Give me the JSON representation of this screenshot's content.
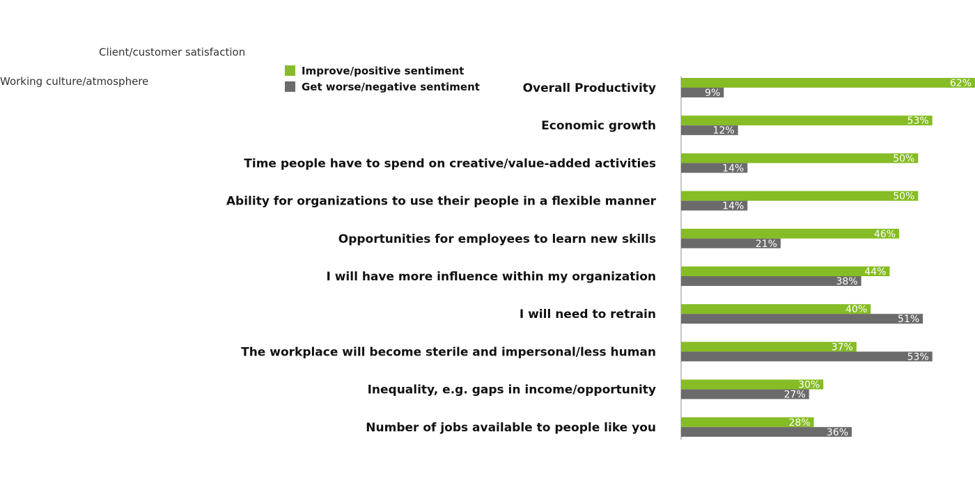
{
  "stray_labels": [
    "Client/customer satisfaction",
    "Working culture/atmosphere"
  ],
  "legend": [
    {
      "label": "Improve/positive sentiment",
      "color": "#86BC25"
    },
    {
      "label": "Get worse/negative sentiment",
      "color": "#6B6B6B"
    }
  ],
  "chart_data": {
    "type": "bar",
    "orientation": "horizontal",
    "categories": [
      "Overall Productivity",
      "Economic growth",
      "Time people have to spend on creative/value-added activities",
      "Ability for organizations to use their people in a flexible manner",
      "Opportunities for employees to learn new skills",
      "I will have more influence within my organization",
      "I will need to retrain",
      "The workplace will become sterile and impersonal/less human",
      "Inequality, e.g. gaps in income/opportunity",
      "Number of jobs available to people like you"
    ],
    "series": [
      {
        "name": "Improve/positive sentiment",
        "color": "#86BC25",
        "values": [
          62,
          53,
          50,
          50,
          46,
          44,
          40,
          37,
          30,
          28
        ]
      },
      {
        "name": "Get worse/negative sentiment",
        "color": "#6B6B6B",
        "values": [
          9,
          12,
          14,
          14,
          21,
          38,
          51,
          53,
          27,
          36
        ]
      }
    ],
    "value_suffix": "%",
    "xlim": [
      0,
      62
    ],
    "grid": false,
    "legend_position": "top-left"
  }
}
